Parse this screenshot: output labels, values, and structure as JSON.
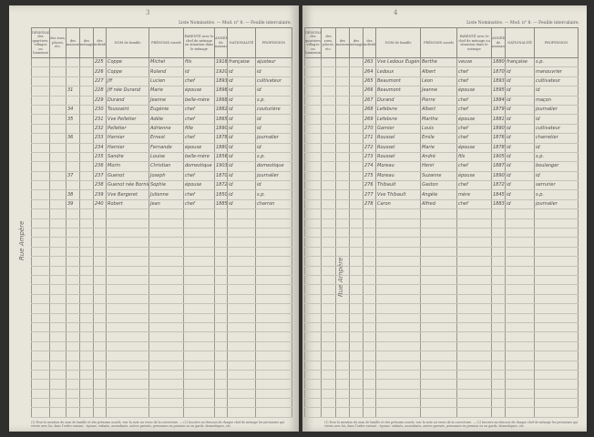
{
  "left_page": {
    "folio": "3",
    "heading": "Liste Nominative. — Mod. n° 8. — Feuille intercalaire.",
    "margin_note": "Rue Ampère",
    "columns": [
      "DÉSIGNATION des quartiers, villages ou hameaux",
      "des rues, places, etc.",
      "des maisons",
      "des ménages",
      "des individus",
      "NOM de famille",
      "PRÉNOMS usuels",
      "PARENTÉ avec le chef de ménage ou situation dans le ménage",
      "ANNÉE de naissance",
      "NATIONALITÉ",
      "PROFESSION"
    ],
    "rows": [
      [
        "",
        "",
        "",
        "",
        "225",
        "Coppe",
        "Michel",
        "fils",
        "1918",
        "française",
        "ajusteur"
      ],
      [
        "",
        "",
        "",
        "",
        "226",
        "Coppe",
        "Roland",
        "id",
        "1920",
        "id",
        "id"
      ],
      [
        "",
        "",
        "",
        "",
        "227",
        "Jff",
        "Lucien",
        "chef",
        "1893",
        "id",
        "cultivateur"
      ],
      [
        "",
        "",
        "31",
        "",
        "228",
        "Jff née Durand",
        "Marie",
        "épouse",
        "1898",
        "id",
        "id"
      ],
      [
        "",
        "",
        "",
        "",
        "229",
        "Durand",
        "Jeanne",
        "belle-mère",
        "1868",
        "id",
        "s.p."
      ],
      [
        "",
        "",
        "34",
        "",
        "230",
        "Toussaint",
        "Eugénie",
        "chef",
        "1882",
        "id",
        "couturière"
      ],
      [
        "",
        "",
        "35",
        "",
        "231",
        "Vve Pelletier",
        "Adèle",
        "chef",
        "1865",
        "id",
        "id"
      ],
      [
        "",
        "",
        "",
        "",
        "232",
        "Pelletier",
        "Adrienne",
        "fille",
        "1890",
        "id",
        "id"
      ],
      [
        "",
        "",
        "36",
        "",
        "233",
        "Harnier",
        "Ernest",
        "chef",
        "1878",
        "id",
        "journalier"
      ],
      [
        "",
        "",
        "",
        "",
        "234",
        "Harnier",
        "Fernande",
        "épouse",
        "1880",
        "id",
        "id"
      ],
      [
        "",
        "",
        "",
        "",
        "235",
        "Sandre",
        "Louise",
        "belle-mère",
        "1856",
        "id",
        "s.p."
      ],
      [
        "",
        "",
        "",
        "",
        "236",
        "Morin",
        "Christian",
        "domestique",
        "1903",
        "id",
        "domestique"
      ],
      [
        "",
        "",
        "37",
        "",
        "237",
        "Guenot",
        "Joseph",
        "chef",
        "1870",
        "id",
        "journalier"
      ],
      [
        "",
        "",
        "",
        "",
        "238",
        "Guenot née Bornier",
        "Sophie",
        "épouse",
        "1872",
        "id",
        "id"
      ],
      [
        "",
        "",
        "38",
        "",
        "239",
        "Vve Bergeret",
        "Julienne",
        "chef",
        "1850",
        "id",
        "s.p."
      ],
      [
        "",
        "",
        "39",
        "",
        "240",
        "Robert",
        "Jean",
        "chef",
        "1885",
        "id",
        "charron"
      ]
    ],
    "total_rows": 38,
    "notes": "(1) Pour la mention du nom de famille et des prénoms usuels, voir la note au verso de la couverture. — (2) Inscrire au-dessous de chaque chef de ménage les personnes qui vivent avec lui, dans l'ordre suivant : épouse, enfants, ascendants, autres parents, personnes en pension ou en garde, domestiques, etc."
  },
  "right_page": {
    "folio": "4",
    "heading": "Liste Nominative. — Mod. n° 8. — Feuille intercalaire.",
    "margin_note": "Rue Ampère",
    "columns": [
      "DÉSIGNATION des quartiers, villages ou hameaux",
      "des rues, places, etc.",
      "des maisons",
      "des ménages",
      "des individus",
      "NOM de famille",
      "PRÉNOMS usuels",
      "PARENTÉ avec le chef de ménage ou situation dans le ménage",
      "ANNÉE de naissance",
      "NATIONALITÉ",
      "PROFESSION"
    ],
    "rows": [
      [
        "",
        "",
        "",
        "",
        "263",
        "Vve Ledoux Eugénie",
        "Berthe",
        "veuve",
        "1880",
        "française",
        "s.p."
      ],
      [
        "",
        "",
        "",
        "",
        "264",
        "Ledoux",
        "Albert",
        "chef",
        "1870",
        "id",
        "manouvrier"
      ],
      [
        "",
        "",
        "",
        "",
        "265",
        "Beaumont",
        "Léon",
        "chef",
        "1893",
        "id",
        "cultivateur"
      ],
      [
        "",
        "",
        "",
        "",
        "266",
        "Beaumont",
        "Jeanne",
        "épouse",
        "1895",
        "id",
        "id"
      ],
      [
        "",
        "",
        "",
        "",
        "267",
        "Durand",
        "Pierre",
        "chef",
        "1884",
        "id",
        "maçon"
      ],
      [
        "",
        "",
        "",
        "",
        "268",
        "Lefebvre",
        "Albert",
        "chef",
        "1879",
        "id",
        "journalier"
      ],
      [
        "",
        "",
        "",
        "",
        "269",
        "Lefebvre",
        "Marthe",
        "épouse",
        "1881",
        "id",
        "id"
      ],
      [
        "",
        "",
        "",
        "",
        "270",
        "Garnier",
        "Louis",
        "chef",
        "1890",
        "id",
        "cultivateur"
      ],
      [
        "",
        "",
        "",
        "",
        "271",
        "Roussel",
        "Emile",
        "chef",
        "1876",
        "id",
        "charretier"
      ],
      [
        "",
        "",
        "",
        "",
        "272",
        "Roussel",
        "Marie",
        "épouse",
        "1878",
        "id",
        "id"
      ],
      [
        "",
        "",
        "",
        "",
        "273",
        "Roussel",
        "André",
        "fils",
        "1905",
        "id",
        "s.p."
      ],
      [
        "",
        "",
        "",
        "",
        "274",
        "Moreau",
        "Henri",
        "chef",
        "1887",
        "id",
        "boulanger"
      ],
      [
        "",
        "",
        "",
        "",
        "275",
        "Moreau",
        "Suzanne",
        "épouse",
        "1890",
        "id",
        "id"
      ],
      [
        "",
        "",
        "",
        "",
        "276",
        "Thibault",
        "Gaston",
        "chef",
        "1872",
        "id",
        "serrurier"
      ],
      [
        "",
        "",
        "",
        "",
        "277",
        "Vve Thibault",
        "Angèle",
        "mère",
        "1845",
        "id",
        "s.p."
      ],
      [
        "",
        "",
        "",
        "",
        "278",
        "Caron",
        "Alfred",
        "chef",
        "1883",
        "id",
        "journalier"
      ]
    ],
    "total_rows": 38,
    "notes": "(1) Pour la mention du nom de famille et des prénoms usuels, voir la note au verso de la couverture. — (2) Inscrire au-dessous de chaque chef de ménage les personnes qui vivent avec lui, dans l'ordre suivant : épouse, enfants, ascendants, autres parents, personnes en pension ou en garde, domestiques, etc."
  }
}
